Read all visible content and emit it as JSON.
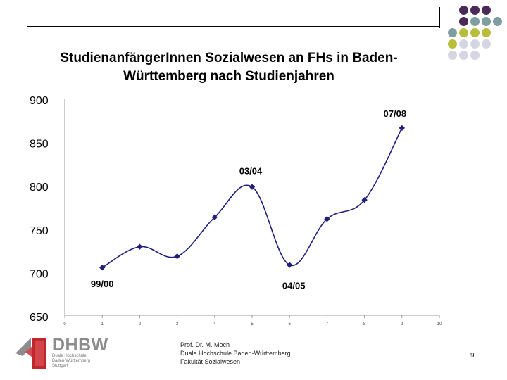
{
  "chart_data": {
    "type": "line",
    "title": "StudienanfängerInnen Sozialwesen an FHs in Baden-Württemberg nach Studienjahren",
    "x_ticks": [
      "0",
      "1",
      "2",
      "3",
      "4",
      "5",
      "6",
      "7",
      "8",
      "9",
      "10"
    ],
    "y_ticks": [
      "900",
      "850",
      "800",
      "750",
      "700",
      "650"
    ],
    "ylim": [
      650,
      900
    ],
    "xlim": [
      0,
      10
    ],
    "x": [
      1,
      2,
      3,
      4,
      5,
      6,
      7,
      8,
      9
    ],
    "values": [
      705,
      729,
      718,
      763,
      798,
      708,
      761,
      783,
      866
    ],
    "annotations": [
      {
        "text": "99/00",
        "x": 1,
        "y": 705
      },
      {
        "text": "03/04",
        "x": 5,
        "y": 798
      },
      {
        "text": "04/05",
        "x": 6,
        "y": 708
      },
      {
        "text": "07/08",
        "x": 9,
        "y": 866
      }
    ],
    "line_color": "#1f1f7a",
    "grid": false,
    "legend": "none"
  },
  "footer": {
    "line1": "Prof. Dr. M. Moch",
    "line2": "Duale Hochschule Baden-Württemberg",
    "line3": "Fakultät Sozialwesen",
    "page_number": "9"
  },
  "logo": {
    "text": "DHBW",
    "sub1": "Duale Hochschule",
    "sub2": "Baden-Württemberg",
    "sub3": "Stuttgart"
  },
  "decor_colors": [
    "#4b2a5a",
    "#7f9ea0",
    "#b8bd3a",
    "#d6d6e2"
  ]
}
